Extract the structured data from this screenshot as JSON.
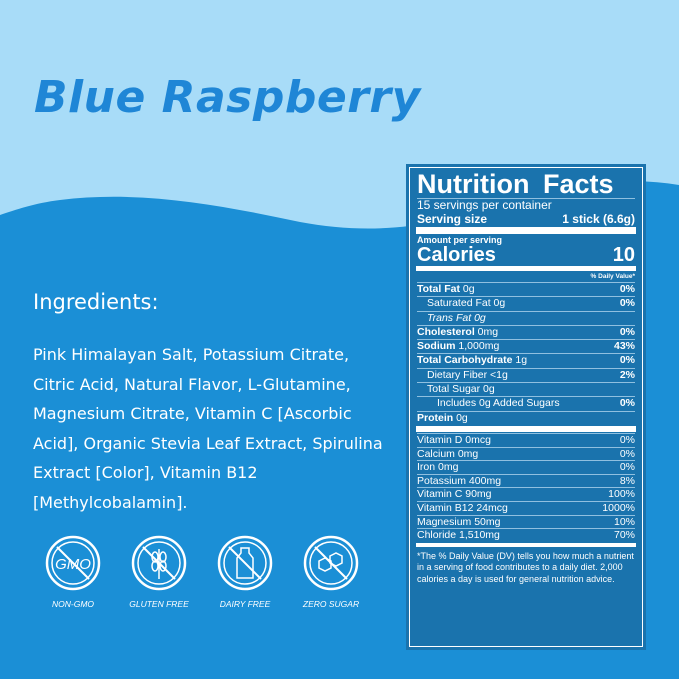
{
  "title": "Blue Raspberry",
  "colors": {
    "top_bg": "#a8dcf8",
    "bottom_bg": "#1b8fd6",
    "title": "#1f86d6",
    "panel": "#1a73ad"
  },
  "ingredients": {
    "heading": "Ingredients:",
    "text": "Pink Himalayan Salt, Potassium Citrate, Citric Acid, Natural Flavor, L-Glutamine, Magnesium Citrate, Vitamin C [Ascorbic Acid], Organic Stevia Leaf Extract, Spirulina Extract [Color], Vitamin B12 [Methylcobalamin]."
  },
  "badges": [
    {
      "icon": "no-gmo-icon",
      "label": "NON-GMO",
      "glyph": "GMO"
    },
    {
      "icon": "no-gluten-icon",
      "label": "GLUTEN FREE"
    },
    {
      "icon": "no-dairy-icon",
      "label": "DAIRY FREE"
    },
    {
      "icon": "no-sugar-icon",
      "label": "ZERO SUGAR"
    }
  ],
  "nutrition": {
    "title": "Nutrition  Facts",
    "servings": "15 servings per container",
    "serving_size_label": "Serving size",
    "serving_size": "1 stick (6.6g)",
    "amount_label": "Amount per serving",
    "calories_label": "Calories",
    "calories": "10",
    "dv_label": "% Daily Value*",
    "rows": [
      {
        "bold": "Total Fat",
        "amt": " 0g",
        "dv": "0%",
        "indent": 0
      },
      {
        "bold": "",
        "amt": "Saturated Fat 0g",
        "dv": "0%",
        "indent": 1
      },
      {
        "bold": "",
        "amt": "Trans Fat 0g",
        "dv": "",
        "indent": 1,
        "italic": true
      },
      {
        "bold": "Cholesterol",
        "amt": " 0mg",
        "dv": "0%",
        "indent": 0
      },
      {
        "bold": "Sodium",
        "amt": " 1,000mg",
        "dv": "43%",
        "indent": 0
      },
      {
        "bold": "Total Carbohydrate",
        "amt": " 1g",
        "dv": "0%",
        "indent": 0
      },
      {
        "bold": "",
        "amt": "Dietary Fiber <1g",
        "dv": "2%",
        "indent": 1
      },
      {
        "bold": "",
        "amt": "Total Sugar 0g",
        "dv": "",
        "indent": 1
      },
      {
        "bold": "",
        "amt": "Includes 0g Added Sugars",
        "dv": "0%",
        "indent": 2
      },
      {
        "bold": "Protein",
        "amt": " 0g",
        "dv": "",
        "indent": 0
      }
    ],
    "vitamins": [
      {
        "name": "Vitamin D 0mcg",
        "dv": "0%"
      },
      {
        "name": "Calcium 0mg",
        "dv": "0%"
      },
      {
        "name": "Iron 0mg",
        "dv": "0%"
      },
      {
        "name": "Potassium 400mg",
        "dv": "8%"
      },
      {
        "name": "Vitamin C 90mg",
        "dv": "100%"
      },
      {
        "name": "Vitamin B12 24mcg",
        "dv": "1000%"
      },
      {
        "name": "Magnesium 50mg",
        "dv": "10%"
      },
      {
        "name": "Chloride 1,510mg",
        "dv": "70%"
      }
    ],
    "footnote": "*The % Daily Value (DV) tells you how much a nutrient in a serving of food contributes to a daily diet. 2,000 calories a day is used for general nutrition advice."
  }
}
